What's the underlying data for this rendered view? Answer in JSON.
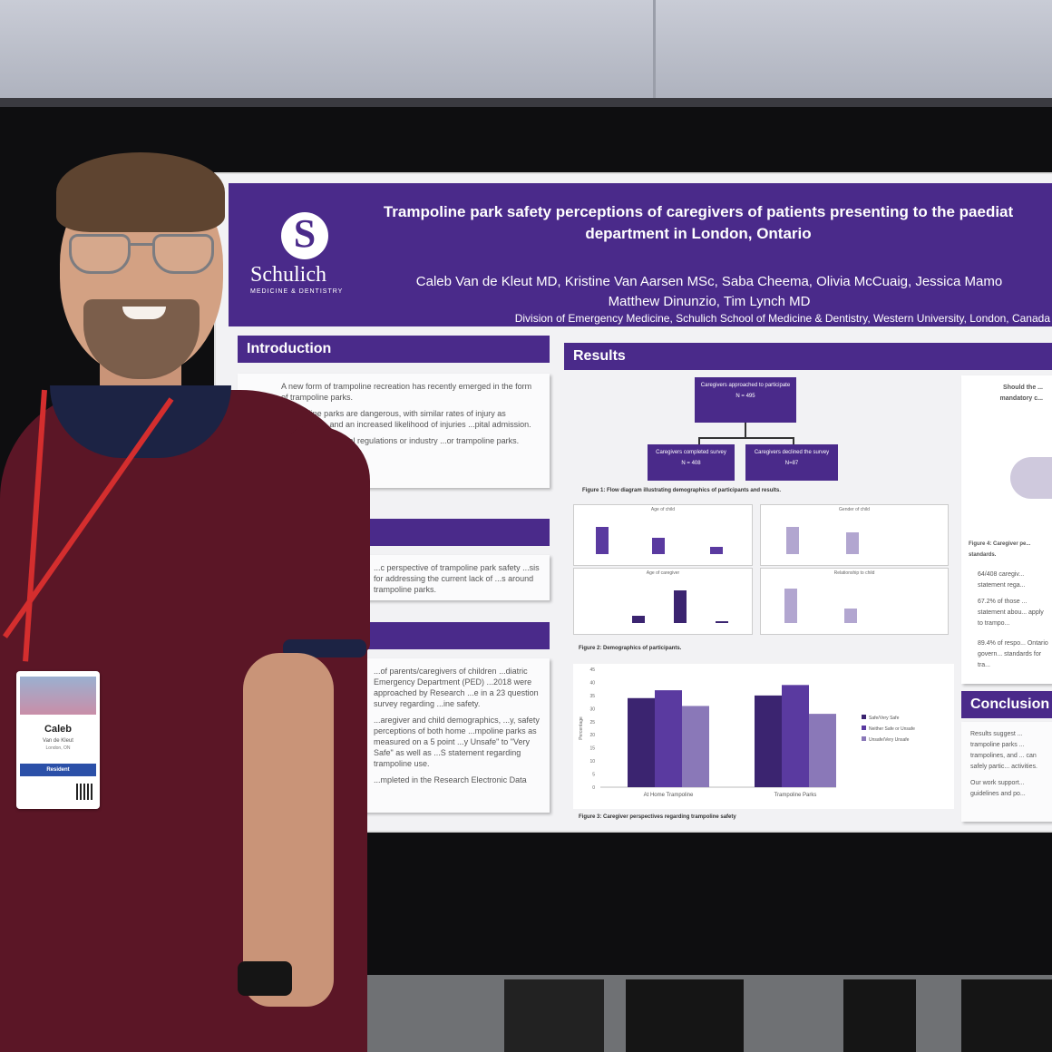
{
  "poster": {
    "title_line1": "Trampoline park safety perceptions of caregivers of patients presenting to the paediat",
    "title_line2": "department in London, Ontario",
    "authors_line1": "Caleb Van de Kleut MD, Kristine Van Aarsen MSc, Saba Cheema, Olivia McCuaig, Jessica Mamo",
    "authors_line2": "Matthew Dinunzio, Tim Lynch MD",
    "affiliation": "Division of Emergency Medicine, Schulich School of Medicine & Dentistry, Western University, London, Canada",
    "logo_text": "Schulich",
    "logo_sub": "MEDICINE & DENTISTRY",
    "introduction": {
      "heading": "Introduction",
      "p1": "A new form of trampoline recreation has recently emerged in the form of trampoline parks.",
      "p2": "Trampoline parks are dangerous, with similar rates of injury as ...ampolines, and an increased likelihood of injuries ...pital admission.",
      "p3": "...dian governmental regulations or industry ...or trampoline parks."
    },
    "objective_text": "...c perspective of trampoline park safety ...sis for addressing the current lack of ...s around trampoline parks.",
    "methods_text1": "...of parents/caregivers of children ...diatric Emergency Department (PED) ...2018 were approached by Research ...e in a 23 question survey regarding ...ine safety.",
    "methods_text2": "...aregiver and child demographics, ...y, safety perceptions of both home ...mpoline parks as measured on a 5 point ...y Unsafe\" to \"Very Safe\" as well as ...S statement regarding trampoline use.",
    "methods_text3": "...mpleted in the Research Electronic Data",
    "results": {
      "heading": "Results",
      "flow_top": "Caregivers approached to participate",
      "flow_top_n": "N = 495",
      "flow_left": "Caregivers completed survey",
      "flow_left_n": "N = 408",
      "flow_right": "Caregivers declined the survey",
      "flow_right_n": "N=87",
      "fig1": "Figure 1: Flow diagram illustrating demographics of participants and results.",
      "fig2": "Figure 2: Demographics of participants.",
      "fig3": "Figure 3: Caregiver perspectives regarding trampoline safety",
      "mini1_title": "Age of child",
      "mini2_title": "Gender of child",
      "mini3_title": "Age of caregiver",
      "mini4_title": "Relationship to child",
      "fig4": "Figure 4: Caregiver pe... standards.",
      "should_text": "Should the ... mandatory c...",
      "bullet1": "64/408 caregiv... statement rega...",
      "bullet2": "67.2% of those ... statement abou... apply to trampo...",
      "bullet3": "89.4% of respo... Ontario govern... standards for tra..."
    },
    "conclusion": {
      "heading": "Conclusion",
      "b1": "Results suggest ... trampoline parks ... trampolines, and ... can safely partic... activities.",
      "b2": "Our work support... guidelines and po..."
    }
  },
  "chart_data": {
    "type": "bar",
    "categories": [
      "At Home Trampoline",
      "Trampoline Parks"
    ],
    "series": [
      {
        "name": "Safe/Very Safe",
        "values": [
          34,
          35
        ]
      },
      {
        "name": "Neither Safe or Unsafe",
        "values": [
          37,
          39
        ]
      },
      {
        "name": "Unsafe/Very Unsafe",
        "values": [
          31,
          28
        ]
      }
    ],
    "ylabel": "Percentage",
    "ylim": [
      0,
      45
    ],
    "yticks": [
      "45",
      "40",
      "35",
      "30",
      "25",
      "20",
      "15",
      "10",
      "5",
      "0"
    ],
    "colors": [
      "#3b2470",
      "#5a3aa0",
      "#8a78b8"
    ]
  },
  "badge": {
    "first_name": "Caleb",
    "last_name": "Van de Kleut",
    "city": "London, ON",
    "role": "Resident"
  }
}
